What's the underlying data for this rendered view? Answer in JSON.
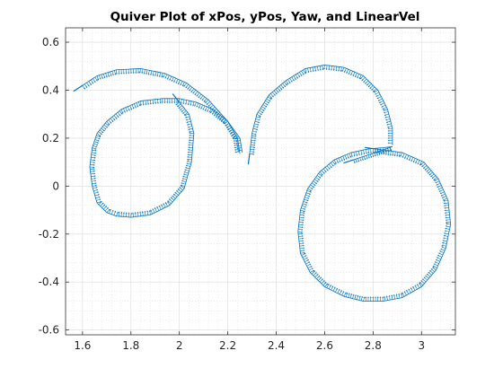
{
  "chart_data": {
    "type": "quiver",
    "title": "Quiver Plot of xPos, yPos, Yaw, and LinearVel",
    "xlabel": "",
    "ylabel": "",
    "xlim": [
      1.53,
      3.14
    ],
    "ylim": [
      -0.62,
      0.66
    ],
    "xticks": [
      1.6,
      1.8,
      2,
      2.2,
      2.4,
      2.6,
      2.8,
      3
    ],
    "yticks": [
      -0.6,
      -0.4,
      -0.2,
      0,
      0.2,
      0.4,
      0.6
    ],
    "grid": true,
    "minor_grid": true,
    "series": [
      {
        "path": [
          [
            1.6,
            0.42
          ],
          [
            1.66,
            0.46
          ],
          [
            1.74,
            0.485
          ],
          [
            1.84,
            0.49
          ],
          [
            1.94,
            0.47
          ],
          [
            2.03,
            0.43
          ],
          [
            2.12,
            0.36
          ],
          [
            2.2,
            0.27
          ],
          [
            2.24,
            0.2
          ],
          [
            2.25,
            0.135
          ]
        ],
        "linear_vel": 0.15
      },
      {
        "path": [
          [
            2.0,
            0.35
          ],
          [
            2.04,
            0.3
          ],
          [
            2.06,
            0.22
          ],
          [
            2.05,
            0.1
          ],
          [
            2.02,
            -0.01
          ],
          [
            1.96,
            -0.08
          ],
          [
            1.88,
            -0.12
          ],
          [
            1.8,
            -0.13
          ],
          [
            1.74,
            -0.125
          ],
          [
            1.7,
            -0.11
          ],
          [
            1.66,
            -0.07
          ],
          [
            1.64,
            0.0
          ],
          [
            1.63,
            0.08
          ],
          [
            1.64,
            0.16
          ],
          [
            1.66,
            0.22
          ],
          [
            1.7,
            0.27
          ],
          [
            1.76,
            0.32
          ],
          [
            1.84,
            0.355
          ],
          [
            1.93,
            0.365
          ],
          [
            2.0,
            0.365
          ],
          [
            2.07,
            0.35
          ],
          [
            2.14,
            0.32
          ],
          [
            2.2,
            0.27
          ],
          [
            2.25,
            0.2
          ],
          [
            2.26,
            0.14
          ]
        ],
        "linear_vel": 0.15
      },
      {
        "path": [
          [
            2.29,
            0.135
          ],
          [
            2.3,
            0.22
          ],
          [
            2.32,
            0.3
          ],
          [
            2.37,
            0.38
          ],
          [
            2.44,
            0.44
          ],
          [
            2.52,
            0.49
          ],
          [
            2.6,
            0.505
          ],
          [
            2.68,
            0.495
          ],
          [
            2.76,
            0.46
          ],
          [
            2.82,
            0.4
          ],
          [
            2.86,
            0.32
          ],
          [
            2.88,
            0.24
          ],
          [
            2.88,
            0.17
          ]
        ],
        "linear_vel": 0.15
      },
      {
        "path": [
          [
            2.72,
            0.11
          ],
          [
            2.78,
            0.13
          ],
          [
            2.84,
            0.15
          ],
          [
            2.88,
            0.165
          ]
        ],
        "linear_vel": 0.12
      },
      {
        "path": [
          [
            2.81,
            0.155
          ],
          [
            2.92,
            0.14
          ],
          [
            3.01,
            0.1
          ],
          [
            3.07,
            0.03
          ],
          [
            3.11,
            -0.06
          ],
          [
            3.12,
            -0.16
          ],
          [
            3.1,
            -0.26
          ],
          [
            3.06,
            -0.35
          ],
          [
            3.0,
            -0.42
          ],
          [
            2.92,
            -0.465
          ],
          [
            2.84,
            -0.48
          ],
          [
            2.76,
            -0.48
          ],
          [
            2.68,
            -0.46
          ],
          [
            2.6,
            -0.42
          ],
          [
            2.54,
            -0.36
          ],
          [
            2.5,
            -0.28
          ],
          [
            2.49,
            -0.19
          ],
          [
            2.5,
            -0.1
          ],
          [
            2.53,
            -0.01
          ],
          [
            2.58,
            0.06
          ],
          [
            2.64,
            0.11
          ],
          [
            2.71,
            0.14
          ],
          [
            2.78,
            0.155
          ],
          [
            2.84,
            0.16
          ],
          [
            2.88,
            0.165
          ]
        ],
        "linear_vel": 0.15
      }
    ]
  }
}
